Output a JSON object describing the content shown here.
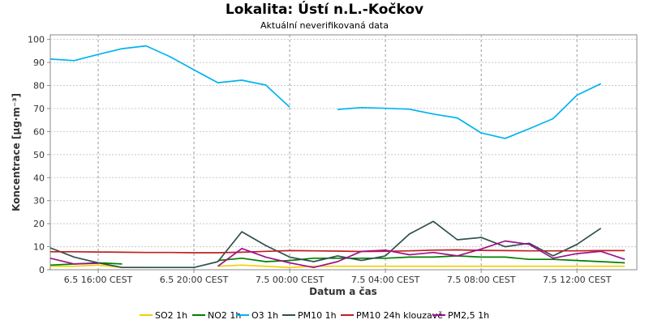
{
  "chart_data": {
    "type": "line",
    "title": "Lokalita: Ústí n.L.-Kočkov",
    "subtitle": "Aktuální neverifikovaná data",
    "xlabel": "Datum a čas",
    "ylabel": "Koncentrace [µg·m⁻³]",
    "ylim": [
      0,
      102
    ],
    "yticks": [
      0,
      10,
      20,
      30,
      40,
      50,
      60,
      70,
      80,
      90,
      100
    ],
    "xlim": [
      14,
      38.5
    ],
    "xticks": [
      {
        "x": 16,
        "label": "6.5 16:00 CEST"
      },
      {
        "x": 20,
        "label": "6.5 20:00 CEST"
      },
      {
        "x": 24,
        "label": "7.5 00:00 CEST"
      },
      {
        "x": 28,
        "label": "7.5 04:00 CEST"
      },
      {
        "x": 32,
        "label": "7.5 08:00 CEST"
      },
      {
        "x": 36,
        "label": "7.5 12:00 CEST"
      }
    ],
    "grid": true,
    "legend_position": "bottom",
    "series": [
      {
        "name": "SO2 1h",
        "color": "#f0d000",
        "x": [
          14,
          15,
          16,
          17,
          18,
          19,
          20,
          21,
          22,
          23,
          24,
          25,
          26,
          27,
          28,
          29,
          30,
          31,
          32,
          33,
          34,
          35,
          36,
          37,
          38
        ],
        "y": [
          1.5,
          1.5,
          2,
          1,
          1,
          null,
          null,
          1.5,
          2,
          1.5,
          1,
          1.5,
          1.5,
          1.5,
          1.5,
          1.5,
          1.5,
          1.5,
          1.5,
          1.5,
          1.5,
          1.5,
          1.5,
          1.5,
          1.5
        ]
      },
      {
        "name": "NO2 1h",
        "color": "#008000",
        "x": [
          14,
          15,
          16,
          17,
          18,
          19,
          20,
          21,
          22,
          23,
          24,
          25,
          26,
          27,
          28,
          29,
          30,
          31,
          32,
          33,
          34,
          35,
          36,
          37,
          38
        ],
        "y": [
          2,
          2.5,
          3,
          2.5,
          null,
          null,
          null,
          4,
          5,
          3.5,
          4,
          5,
          5,
          5,
          5,
          5.5,
          5.5,
          6,
          5.5,
          5.5,
          4.5,
          4.5,
          4,
          3.5,
          3
        ]
      },
      {
        "name": "O3 1h",
        "color": "#00b4f0",
        "x": [
          14,
          15,
          16,
          17,
          18,
          19,
          20,
          21,
          22,
          23,
          24,
          25,
          26,
          27,
          28,
          29,
          30,
          31,
          32,
          33,
          34,
          35,
          36,
          37,
          38
        ],
        "y": [
          91.5,
          90.8,
          93.5,
          96,
          97.2,
          92.5,
          86.8,
          81.2,
          82.3,
          80.2,
          70.6,
          null,
          69.6,
          70.4,
          70.1,
          69.7,
          67.6,
          65.9,
          59.4,
          57,
          61.2,
          65.6,
          75.8,
          80.8,
          null
        ]
      },
      {
        "name": "PM10 1h",
        "color": "#2f4f4f",
        "x": [
          14,
          15,
          16,
          17,
          18,
          19,
          20,
          21,
          22,
          23,
          24,
          25,
          26,
          27,
          28,
          29,
          30,
          31,
          32,
          33,
          34,
          35,
          36,
          37,
          38
        ],
        "y": [
          9.5,
          5.5,
          3,
          1,
          1,
          1,
          1,
          3.5,
          16.5,
          10.5,
          5.5,
          3.5,
          6,
          4,
          6,
          15.5,
          21,
          13,
          14,
          10,
          11.5,
          6,
          11,
          18,
          null
        ]
      },
      {
        "name": "PM10 24h klouzavě",
        "color": "#c02020",
        "x": [
          14,
          15,
          16,
          17,
          18,
          19,
          20,
          21,
          22,
          23,
          24,
          25,
          26,
          27,
          28,
          29,
          30,
          31,
          32,
          33,
          34,
          35,
          36,
          37,
          38
        ],
        "y": [
          7.8,
          7.8,
          7.7,
          7.6,
          7.5,
          7.5,
          7.4,
          7.4,
          7.6,
          8,
          8.3,
          8.2,
          8.1,
          7.9,
          8,
          8.2,
          8.5,
          8.6,
          8.4,
          8.3,
          8.2,
          8.2,
          8.2,
          8.3,
          8.3
        ]
      },
      {
        "name": "PM2,5 1h",
        "color": "#a0108c",
        "x": [
          14,
          15,
          16,
          17,
          18,
          19,
          20,
          21,
          22,
          23,
          24,
          25,
          26,
          27,
          28,
          29,
          30,
          31,
          32,
          33,
          34,
          35,
          36,
          37,
          38
        ],
        "y": [
          5,
          2.5,
          2.8,
          null,
          null,
          null,
          null,
          1.5,
          9.2,
          5.5,
          3,
          1,
          3.5,
          8,
          8.5,
          6.5,
          7.5,
          6,
          9,
          12.5,
          11,
          5,
          7,
          8,
          4.5
        ]
      }
    ]
  }
}
